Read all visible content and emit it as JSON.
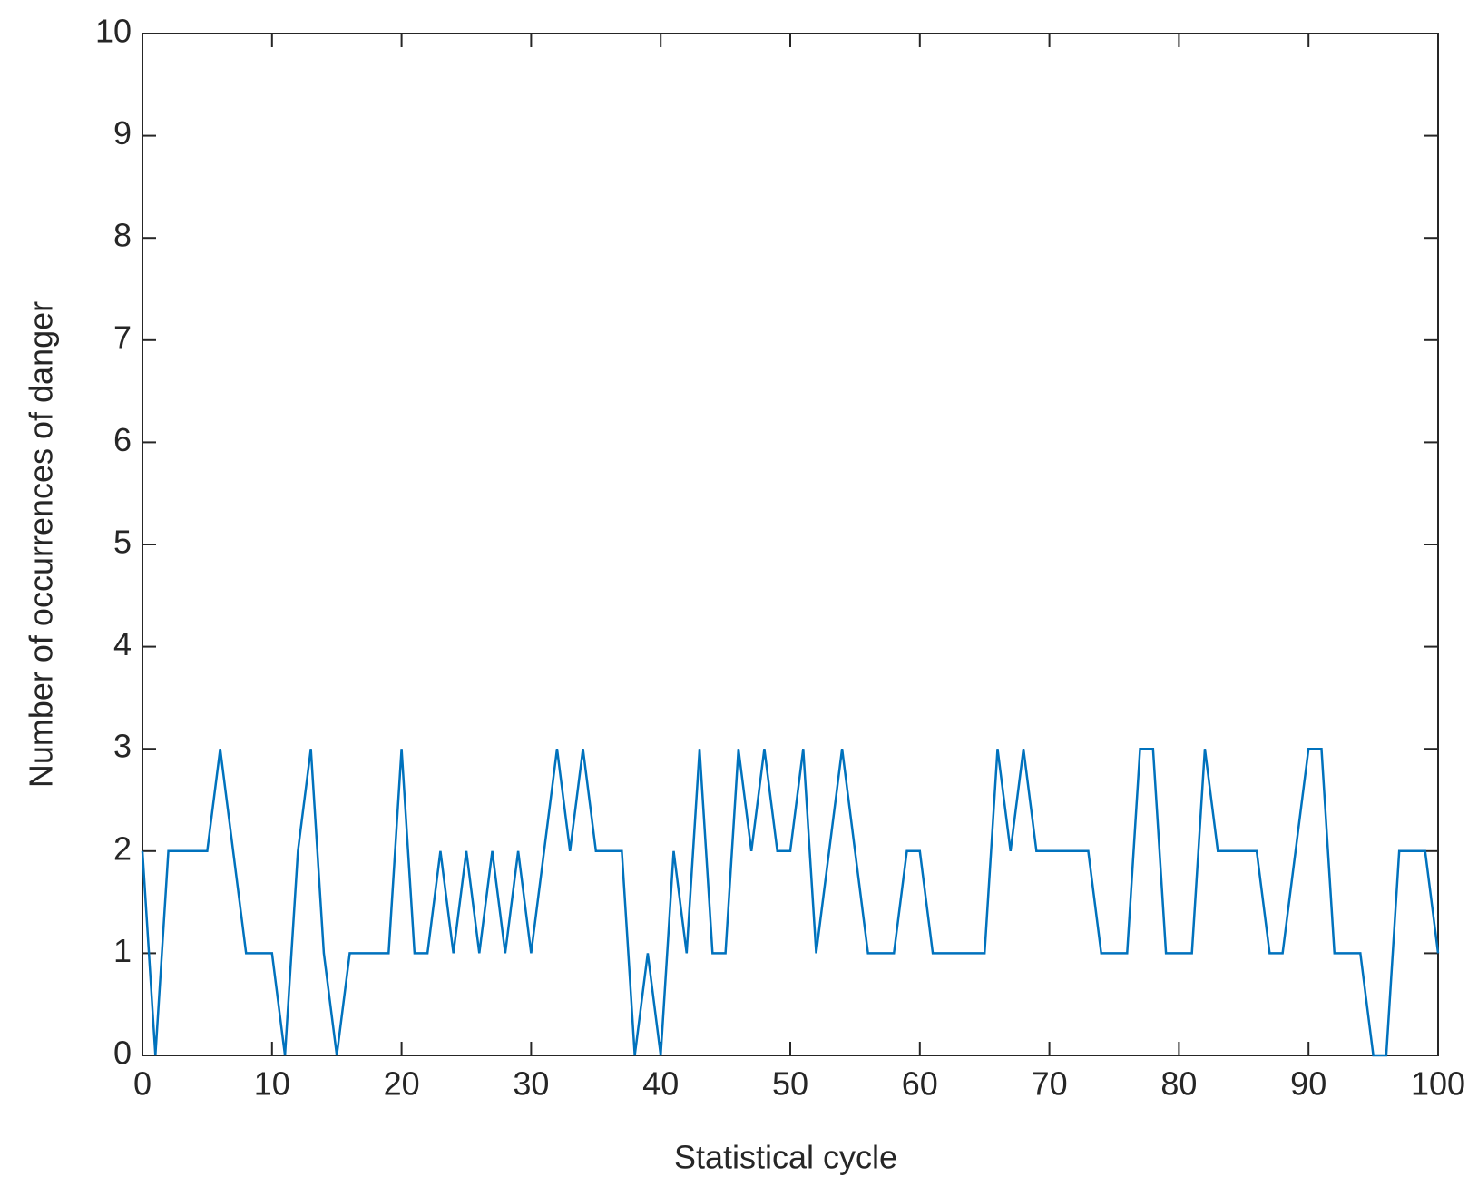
{
  "chart_data": {
    "type": "line",
    "xlabel": "Statistical cycle",
    "ylabel": "Number of occurrences of danger",
    "x": [
      0,
      1,
      2,
      3,
      4,
      5,
      6,
      7,
      8,
      9,
      10,
      11,
      12,
      13,
      14,
      15,
      16,
      17,
      18,
      19,
      20,
      21,
      22,
      23,
      24,
      25,
      26,
      27,
      28,
      29,
      30,
      31,
      32,
      33,
      34,
      35,
      36,
      37,
      38,
      39,
      40,
      41,
      42,
      43,
      44,
      45,
      46,
      47,
      48,
      49,
      50,
      51,
      52,
      53,
      54,
      55,
      56,
      57,
      58,
      59,
      60,
      61,
      62,
      63,
      64,
      65,
      66,
      67,
      68,
      69,
      70,
      71,
      72,
      73,
      74,
      75,
      76,
      77,
      78,
      79,
      80,
      81,
      82,
      83,
      84,
      85,
      86,
      87,
      88,
      89,
      90,
      91,
      92,
      93,
      94,
      95,
      96,
      97,
      98,
      99,
      100
    ],
    "values": [
      2,
      0,
      2,
      2,
      2,
      2,
      3,
      2,
      1,
      1,
      1,
      0,
      2,
      3,
      1,
      0,
      1,
      1,
      1,
      1,
      3,
      1,
      1,
      2,
      1,
      2,
      1,
      2,
      1,
      2,
      1,
      2,
      3,
      2,
      3,
      2,
      2,
      2,
      0,
      1,
      0,
      2,
      1,
      3,
      1,
      1,
      3,
      2,
      3,
      2,
      2,
      3,
      1,
      2,
      3,
      2,
      1,
      1,
      1,
      2,
      2,
      1,
      1,
      1,
      1,
      1,
      3,
      2,
      3,
      2,
      2,
      2,
      2,
      2,
      1,
      1,
      1,
      3,
      3,
      1,
      1,
      1,
      3,
      2,
      2,
      2,
      2,
      1,
      1,
      2,
      3,
      3,
      1,
      1,
      1,
      0,
      0,
      2,
      2,
      2,
      1
    ],
    "color": "#0072bd",
    "xlim": [
      0,
      100
    ],
    "xticks": [
      0,
      10,
      20,
      30,
      40,
      50,
      60,
      70,
      80,
      90,
      100
    ],
    "ylim": [
      0,
      10
    ],
    "yticks": [
      0,
      1,
      2,
      3,
      4,
      5,
      6,
      7,
      8,
      9,
      10
    ]
  }
}
